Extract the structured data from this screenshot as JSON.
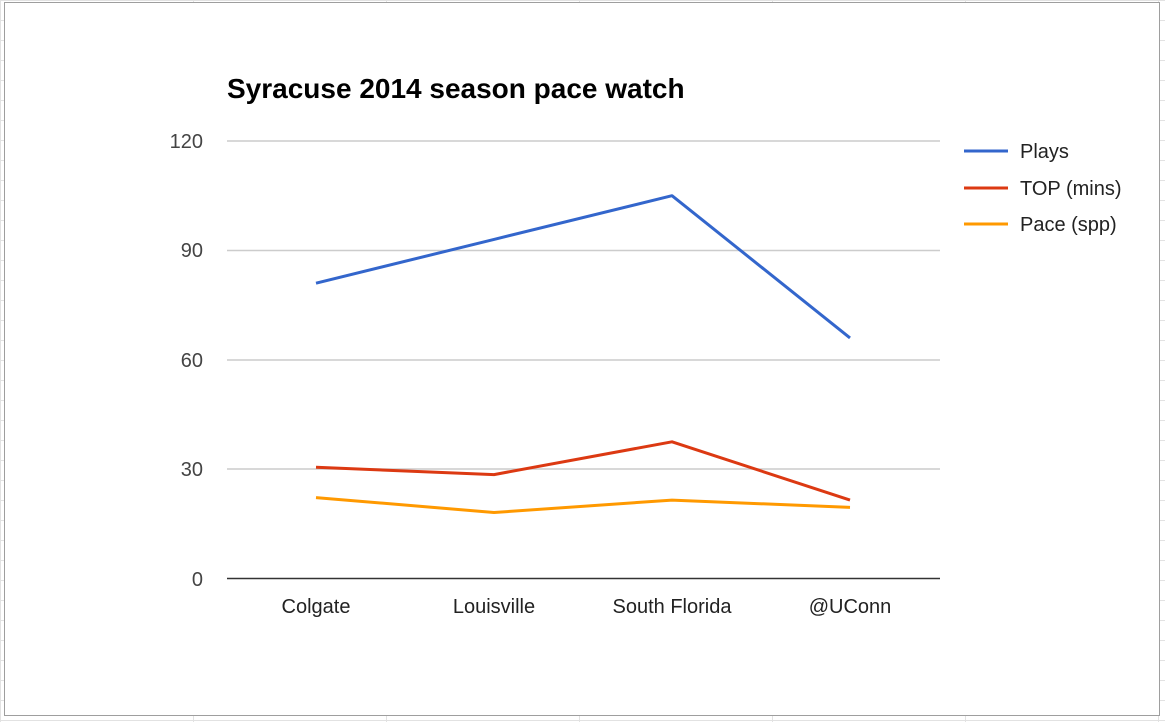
{
  "chart_data": {
    "type": "line",
    "title": "Syracuse 2014 season pace watch",
    "xlabel": "",
    "ylabel": "",
    "categories": [
      "Colgate",
      "Louisville",
      "South Florida",
      "@UConn"
    ],
    "series": [
      {
        "name": "Plays",
        "color": "#3366cc",
        "values": [
          81,
          93,
          105,
          66
        ]
      },
      {
        "name": "TOP (mins)",
        "color": "#dc3912",
        "values": [
          30.5,
          28.5,
          37.5,
          21.5
        ]
      },
      {
        "name": "Pace (spp)",
        "color": "#ff9900",
        "values": [
          22.2,
          18.1,
          21.5,
          19.5
        ]
      }
    ],
    "yticks": [
      0,
      30,
      60,
      90,
      120
    ],
    "ylim": [
      0,
      120
    ],
    "grid": true,
    "legend_position": "right"
  },
  "labels": {
    "title": "Syracuse 2014 season pace watch",
    "yticks": [
      "120",
      "90",
      "60",
      "30",
      "0"
    ],
    "categories": [
      "Colgate",
      "Louisville",
      "South Florida",
      "@UConn"
    ],
    "legend": [
      "Plays",
      "TOP (mins)",
      "Pace (spp)"
    ]
  }
}
